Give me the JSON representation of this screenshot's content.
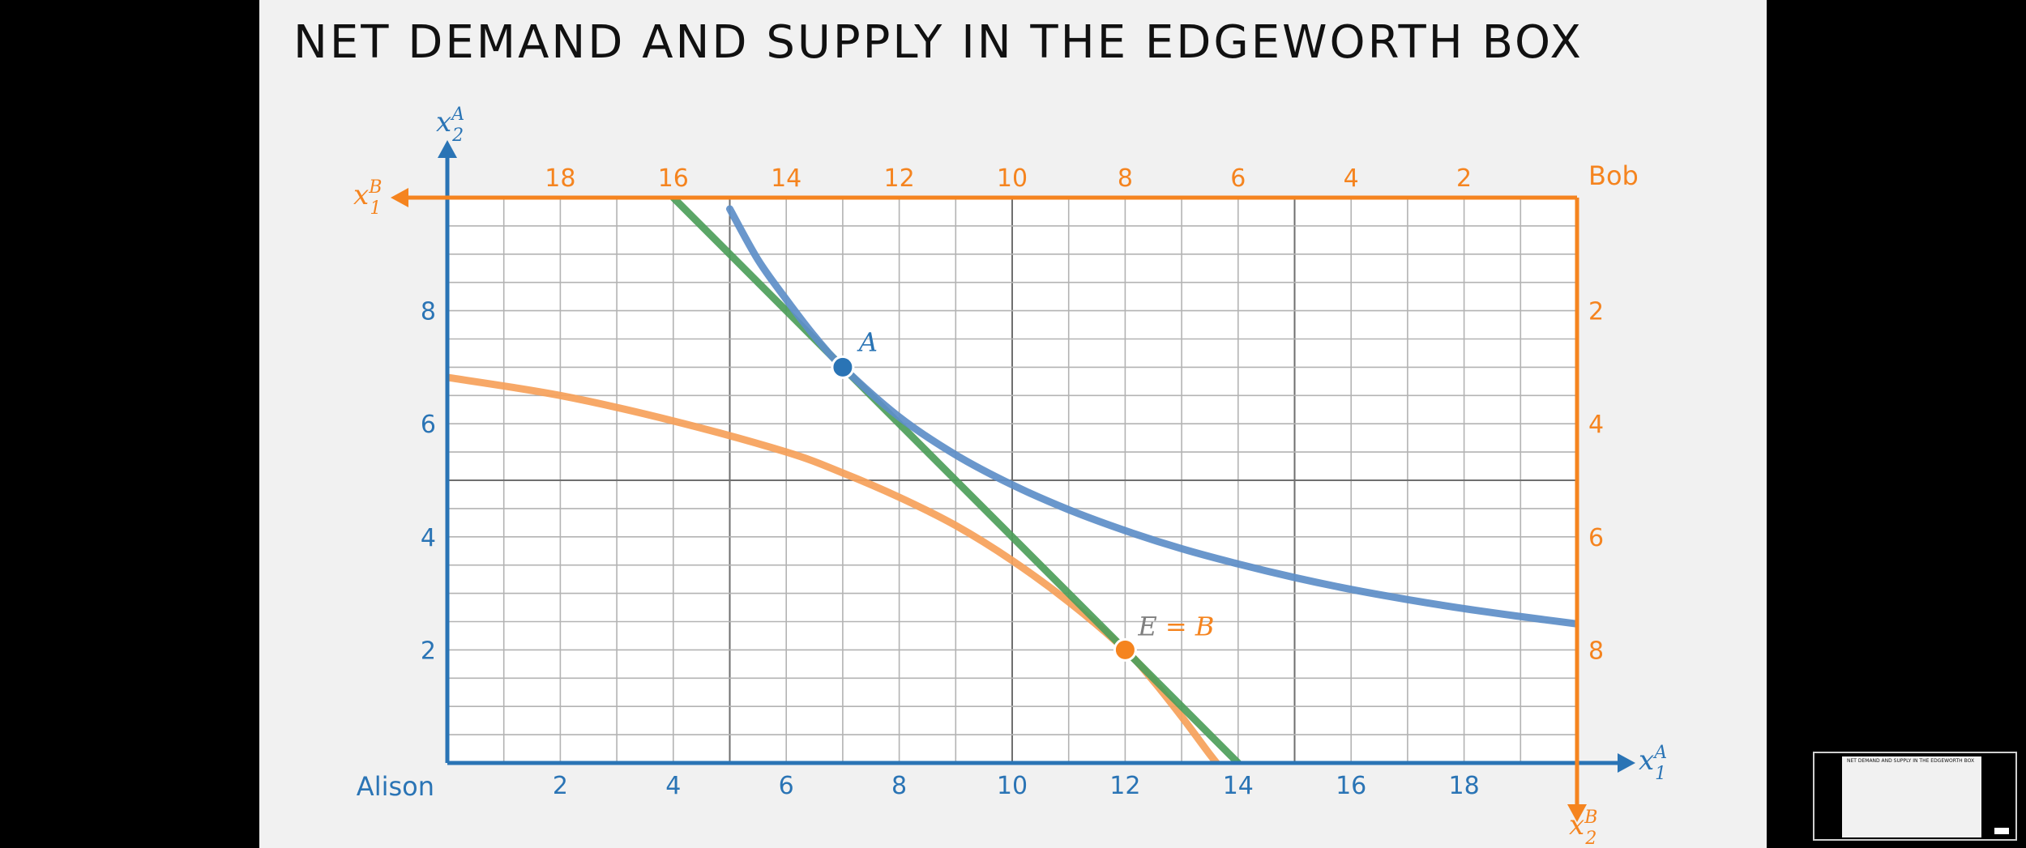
{
  "slide": {
    "title": "NET DEMAND AND SUPPLY IN THE EDGEWORTH BOX"
  },
  "colors": {
    "alison": "#2a74b5",
    "bob": "#f5841f",
    "green": "#4d9e5a",
    "blue_curve": "#5d8ec8",
    "orange_curve": "#f6a15a",
    "background": "#f1f1f1",
    "plot_bg": "#ffffff",
    "point_label_gray": "#7f7f7f"
  },
  "chart_data": {
    "type": "line",
    "box": {
      "x1_total": 20,
      "x2_total": 10
    },
    "alison": {
      "origin_label": "Alison",
      "x_axis_label": "x_1^A",
      "y_axis_label": "x_2^A",
      "x_ticks": [
        2,
        4,
        6,
        8,
        10,
        12,
        14,
        16,
        18
      ],
      "y_ticks": [
        2,
        4,
        6,
        8
      ]
    },
    "bob": {
      "origin_label": "Bob",
      "x_axis_label": "x_1^B",
      "y_axis_label": "x_2^B",
      "x_ticks": [
        18,
        16,
        14,
        12,
        10,
        8,
        6,
        4,
        2
      ],
      "y_ticks": [
        2,
        4,
        6,
        8
      ]
    },
    "series": [
      {
        "id": "alison-indifference",
        "color": "blue_curve",
        "x": [
          5.0,
          5.5,
          6.0,
          6.5,
          7.0,
          8.0,
          9.0,
          10.0,
          11.0,
          12.0,
          13.0,
          14.0,
          15.0,
          16.0,
          17.0,
          18.0,
          19.0,
          20.0
        ],
        "y": [
          9.8,
          8.9,
          8.2,
          7.55,
          7.0,
          6.12,
          5.45,
          4.92,
          4.48,
          4.11,
          3.79,
          3.52,
          3.28,
          3.07,
          2.89,
          2.73,
          2.59,
          2.46
        ]
      },
      {
        "id": "bob-indifference",
        "color": "orange_curve",
        "x": [
          0.0,
          2.0,
          4.0,
          6.0,
          7.0,
          8.0,
          9.0,
          10.0,
          11.0,
          12.0,
          12.5,
          13.0,
          13.5,
          13.7
        ],
        "y": [
          6.82,
          6.5,
          6.05,
          5.5,
          5.13,
          4.7,
          4.2,
          3.58,
          2.85,
          2.0,
          1.45,
          0.82,
          0.15,
          -0.1
        ]
      },
      {
        "id": "budget-line",
        "color": "green",
        "x": [
          4.0,
          14.0
        ],
        "y": [
          10.0,
          0.0
        ]
      }
    ],
    "points": [
      {
        "id": "point-a",
        "label": "A",
        "x": 7.0,
        "y": 7.0,
        "color": "alison",
        "label_color": "alison"
      },
      {
        "id": "point-e-b",
        "label": "E = B",
        "x": 12.0,
        "y": 2.0,
        "color": "bob",
        "label_color": "mixed"
      }
    ],
    "grid": true
  }
}
